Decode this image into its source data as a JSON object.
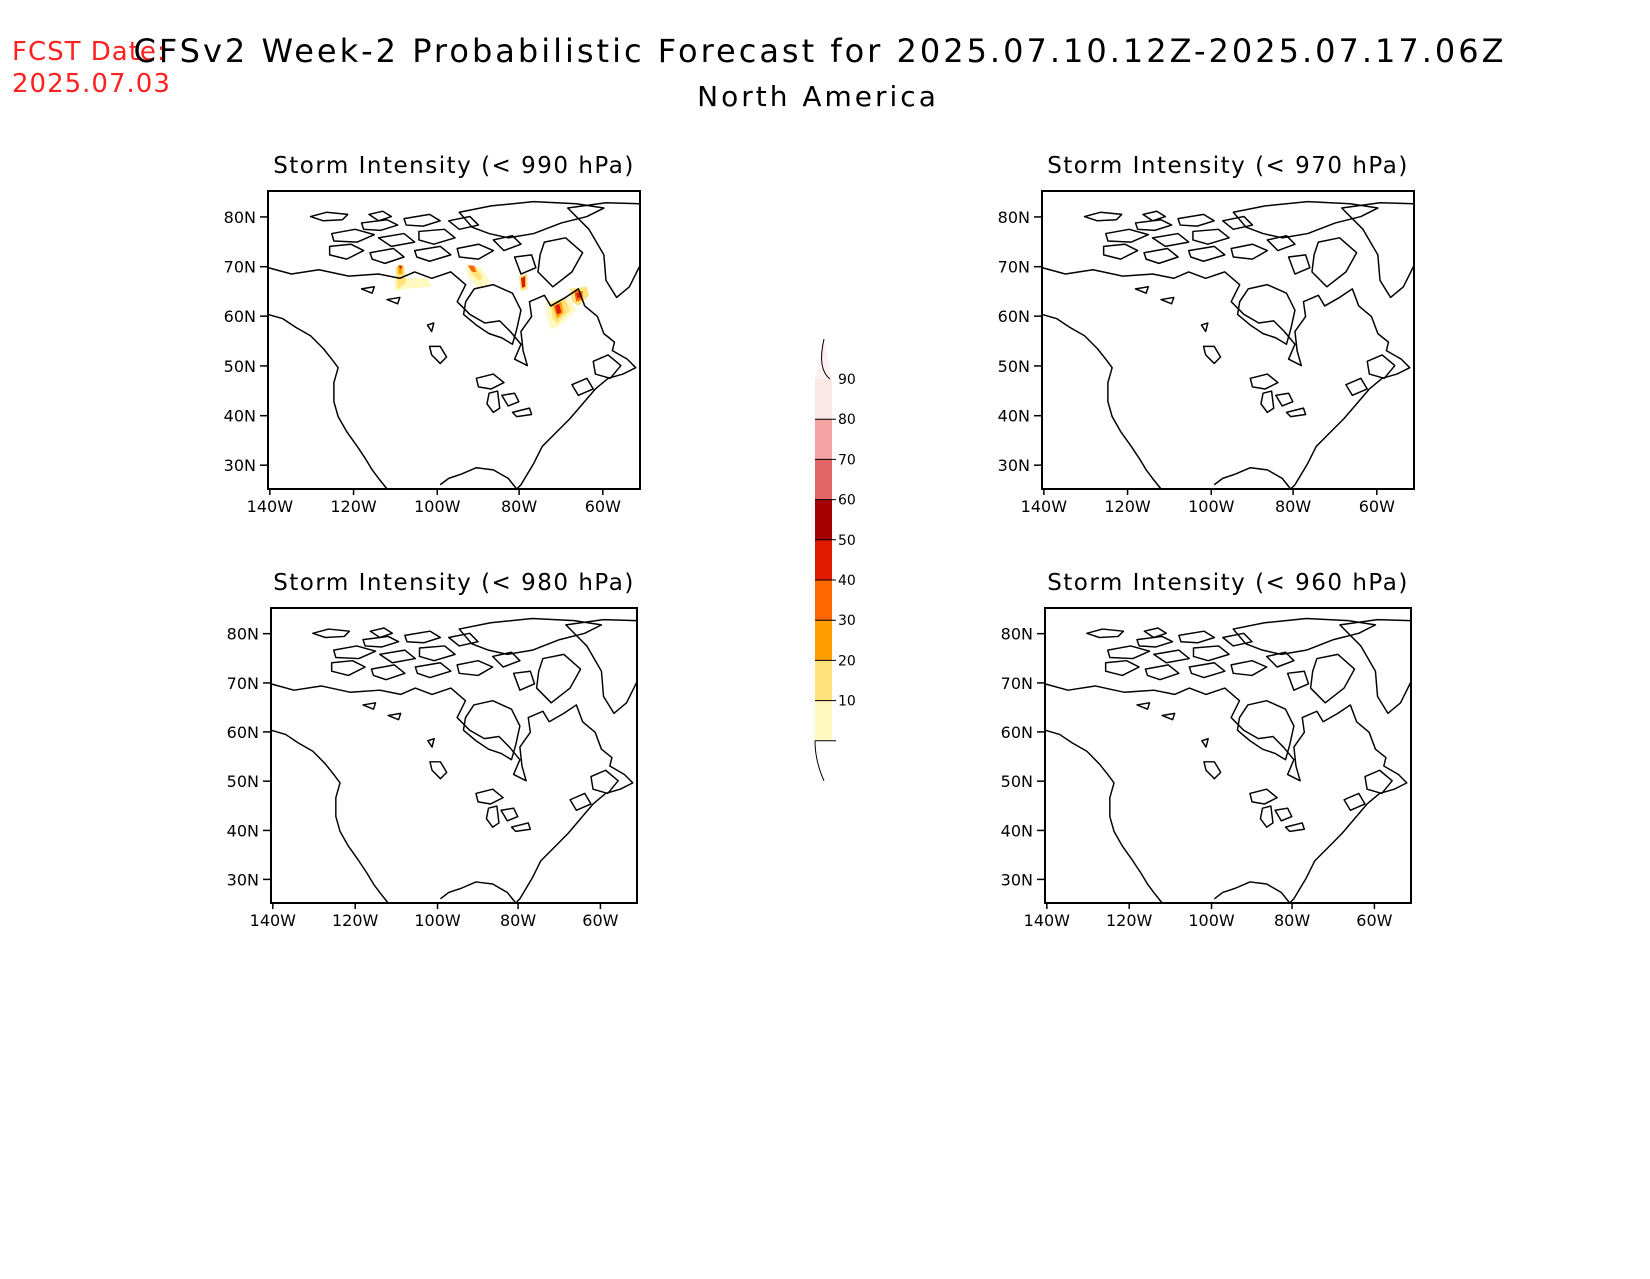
{
  "fcst_date_label": "FCST Date:",
  "fcst_date_value": "2025.07.03",
  "title": "CFSv2 Week-2 Probabilistic Forecast for 2025.07.10.12Z-2025.07.17.06Z",
  "subtitle": "North America",
  "lat_ticks": [
    "80N",
    "70N",
    "60N",
    "50N",
    "40N",
    "30N"
  ],
  "lon_ticks": [
    "140W",
    "120W",
    "100W",
    "80W",
    "60W"
  ],
  "panels": [
    {
      "title": "Storm Intensity (< 990 hPa)",
      "has_signal": true
    },
    {
      "title": "Storm Intensity (< 970 hPa)",
      "has_signal": false
    },
    {
      "title": "Storm Intensity (< 980 hPa)",
      "has_signal": false
    },
    {
      "title": "Storm Intensity (< 960 hPa)",
      "has_signal": false
    }
  ],
  "colorbar": {
    "labels": [
      "90",
      "80",
      "70",
      "60",
      "50",
      "40",
      "30",
      "20",
      "10"
    ],
    "colors": [
      "#fde8e8",
      "#f5a3a3",
      "#e06666",
      "#a50000",
      "#e01a00",
      "#ff6600",
      "#ff9e00",
      "#ffe27a",
      "#fff8bf"
    ]
  }
}
